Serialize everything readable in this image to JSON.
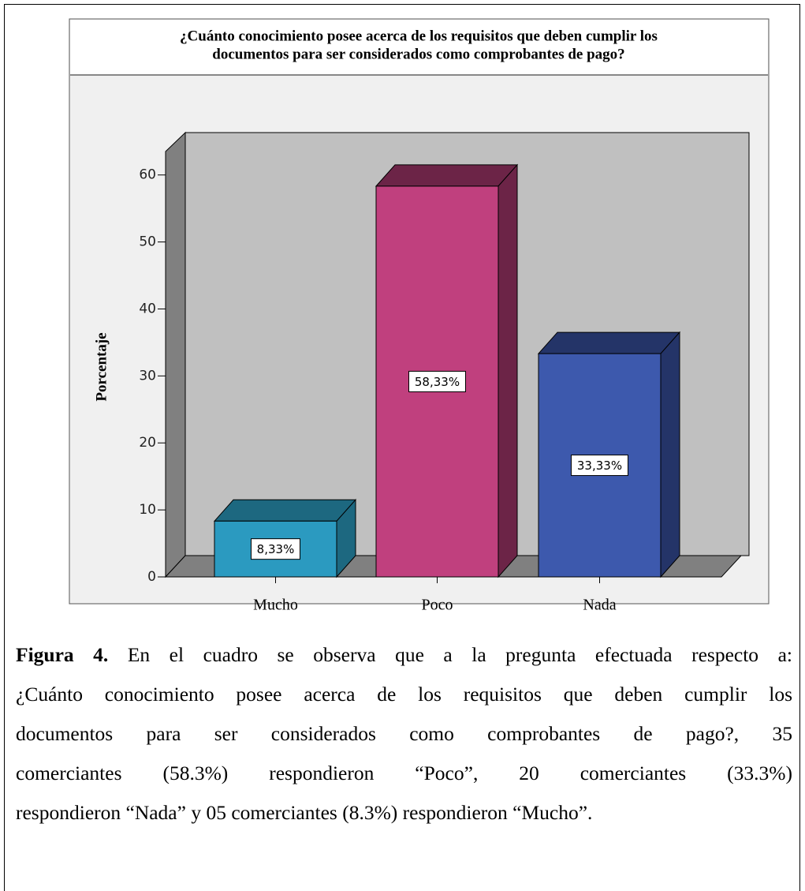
{
  "chart_data": {
    "type": "bar3d",
    "title": [
      "¿Cuánto conocimiento posee acerca de los requisitos que deben cumplir los",
      "documentos para ser considerados como comprobantes de pago?"
    ],
    "y_label": "Porcentaje",
    "categories": [
      "Mucho",
      "Poco",
      "Nada"
    ],
    "values": [
      8.33,
      58.33,
      33.33
    ],
    "value_labels": [
      "8,33%",
      "58,33%",
      "33,33%"
    ],
    "colors": [
      "#2b9ac0",
      "#c0407e",
      "#3d59ad"
    ],
    "side_colors": [
      "#1d6880",
      "#6c2447",
      "#243468"
    ],
    "ylim": [
      0,
      63.5
    ],
    "yticks": [
      0,
      10,
      20,
      30,
      40,
      50,
      60
    ]
  },
  "caption": {
    "label": "Figura 4.",
    "lines": [
      " En el cuadro se observa que a la pregunta efectuada respecto a:",
      "¿Cuánto conocimiento posee acerca de los requisitos que deben cumplir los",
      "documentos para ser considerados como comprobantes de pago?, 35",
      "comerciantes (58.3%) respondieron “Poco”, 20 comerciantes (33.3%)",
      "respondieron “Nada” y 05 comerciantes (8.3%) respondieron “Mucho”."
    ]
  }
}
